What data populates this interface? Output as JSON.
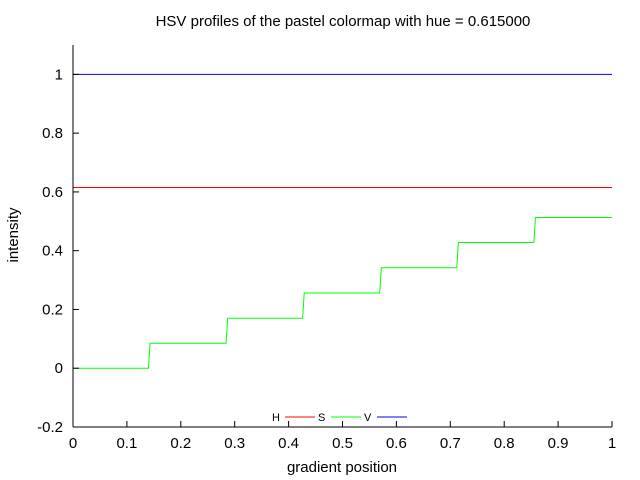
{
  "chart_data": {
    "type": "line",
    "title": "HSV profiles of the pastel colormap with hue = 0.615000",
    "xlabel": "gradient position",
    "ylabel": "intensity",
    "xlim": [
      0,
      1
    ],
    "ylim": [
      -0.2,
      1.1
    ],
    "x_ticks": [
      "0",
      "0.1",
      "0.2",
      "0.3",
      "0.4",
      "0.5",
      "0.6",
      "0.7",
      "0.8",
      "0.9",
      "1"
    ],
    "y_ticks": [
      "-0.2",
      "0",
      "0.2",
      "0.4",
      "0.6",
      "0.8",
      "1"
    ],
    "grid": false,
    "legend_position": "bottom-center",
    "series": [
      {
        "name": "H",
        "color": "#ff0000",
        "x": [
          0,
          1
        ],
        "y": [
          0.615,
          0.615
        ]
      },
      {
        "name": "S",
        "color": "#00ff00",
        "x": [
          0,
          0.14,
          0.143,
          0.284,
          0.287,
          0.426,
          0.429,
          0.569,
          0.572,
          0.712,
          0.715,
          0.855,
          0.858,
          1
        ],
        "y": [
          0,
          0,
          0.085,
          0.085,
          0.17,
          0.17,
          0.256,
          0.256,
          0.342,
          0.342,
          0.428,
          0.428,
          0.513,
          0.513
        ]
      },
      {
        "name": "V",
        "color": "#0000ff",
        "x": [
          0,
          1
        ],
        "y": [
          1,
          1
        ]
      }
    ]
  }
}
